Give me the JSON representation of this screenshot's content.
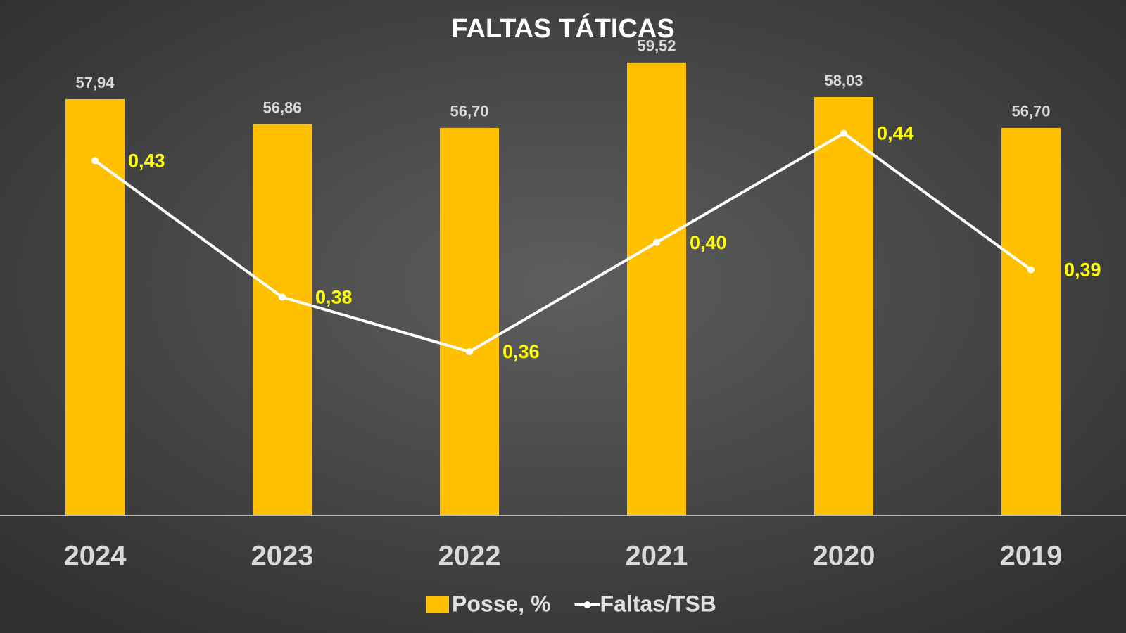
{
  "chart_data": {
    "type": "bar",
    "title": "FALTAS TÁTICAS",
    "categories": [
      "2024",
      "2023",
      "2022",
      "2021",
      "2020",
      "2019"
    ],
    "series": [
      {
        "name": "Posse, %",
        "type": "bar",
        "color": "#ffc000",
        "values": [
          57.94,
          56.86,
          56.7,
          59.52,
          58.03,
          56.7
        ],
        "value_labels": [
          "57,94",
          "56,86",
          "56,70",
          "59,52",
          "58,03",
          "56,70"
        ],
        "label_color": "#d9d9d9"
      },
      {
        "name": "Faltas/TSB",
        "type": "line",
        "axis": "y2",
        "color": "#ffffff",
        "values": [
          0.43,
          0.38,
          0.36,
          0.4,
          0.44,
          0.39
        ],
        "value_labels": [
          "0,43",
          "0,38",
          "0,36",
          "0,40",
          "0,44",
          "0,39"
        ],
        "label_color": "#ffff00"
      }
    ],
    "ylim": [
      40,
      60
    ],
    "y2lim": [
      0.3,
      0.47
    ]
  }
}
